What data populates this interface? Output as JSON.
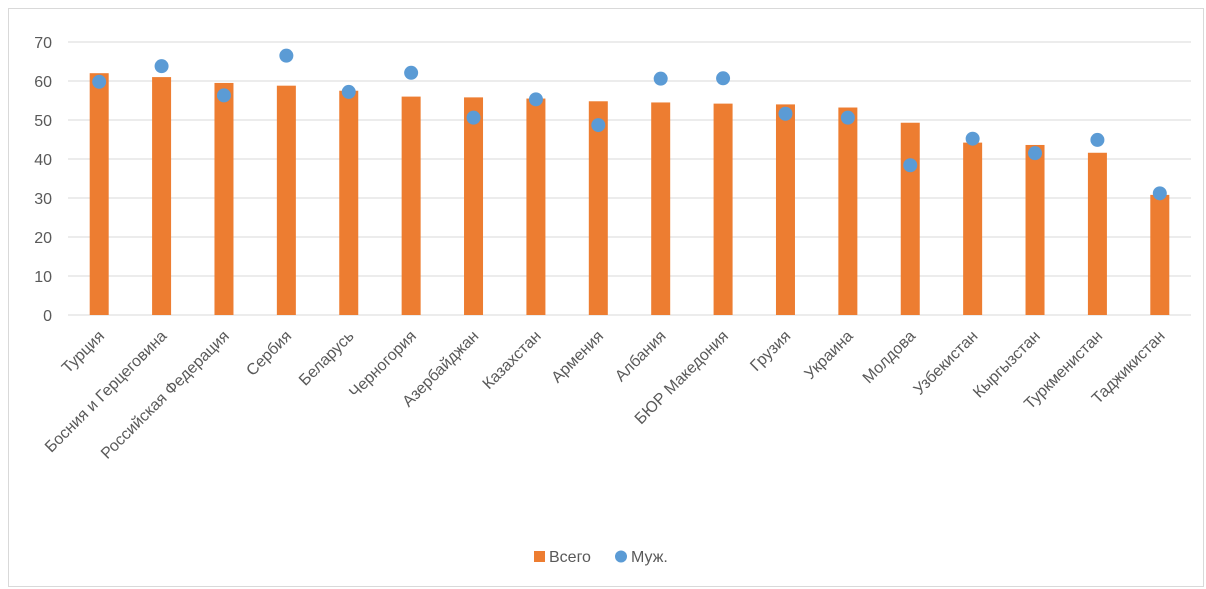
{
  "chart_data": {
    "type": "bar",
    "categories": [
      "Турция",
      "Босния и Герцеговина",
      "Российская Федерация",
      "Сербия",
      "Беларусь",
      "Черногория",
      "Азербайджан",
      "Казахстан",
      "Армения",
      "Албания",
      "БЮР Македония",
      "Грузия",
      "Украина",
      "Молдова",
      "Узбекистан",
      "Кыргызстан",
      "Туркменистан",
      "Таджикистан"
    ],
    "series": [
      {
        "name": "Всего",
        "kind": "bar",
        "color": "#ED7D31",
        "values": [
          62.0,
          61.0,
          59.5,
          58.8,
          57.5,
          56.0,
          55.8,
          55.5,
          54.8,
          54.5,
          54.2,
          54.0,
          53.2,
          49.3,
          44.2,
          43.6,
          41.6,
          30.8
        ]
      },
      {
        "name": "Муж.",
        "kind": "scatter",
        "color": "#5B9BD5",
        "values": [
          59.8,
          63.8,
          56.3,
          66.5,
          57.2,
          62.1,
          50.6,
          55.3,
          48.7,
          60.6,
          60.7,
          51.6,
          50.6,
          38.4,
          45.2,
          41.5,
          44.9,
          31.2
        ]
      }
    ],
    "yticks": [
      "0",
      "10",
      "20",
      "30",
      "40",
      "50",
      "60",
      "70"
    ],
    "ylim": [
      0,
      70
    ],
    "grid": true,
    "legend": "bottom",
    "gridColor": "#d9d9d9",
    "textColor": "#595959"
  }
}
